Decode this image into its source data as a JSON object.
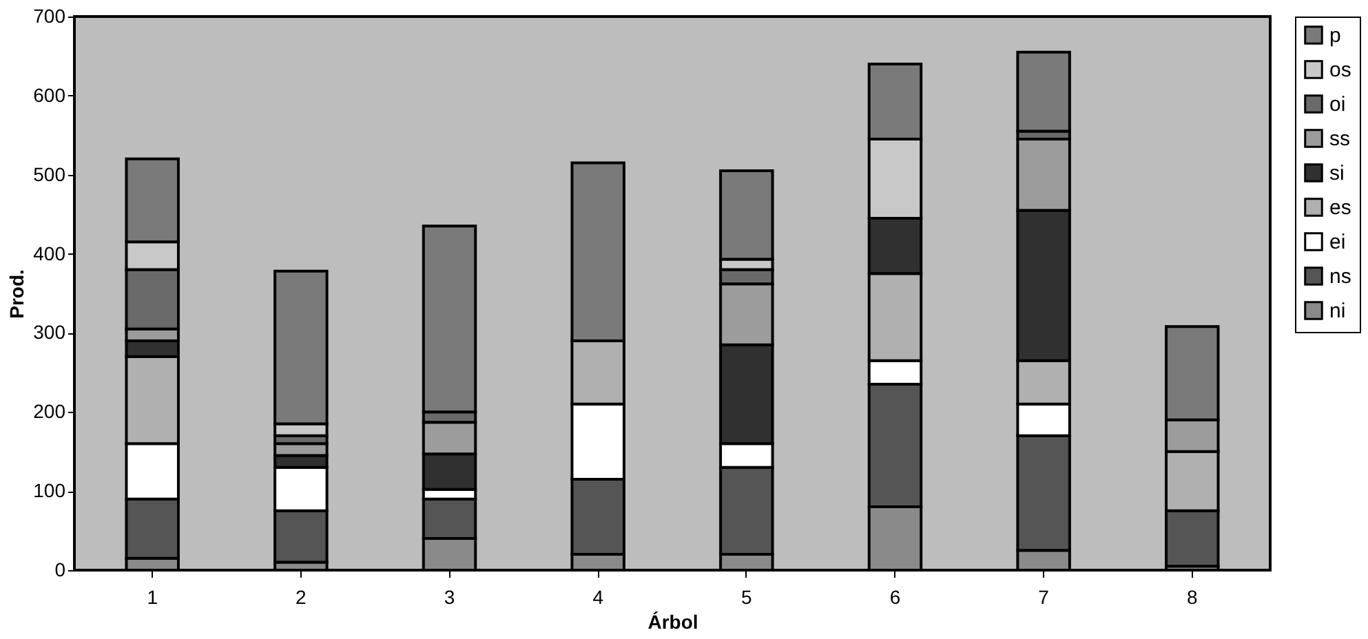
{
  "chart_data": {
    "type": "bar",
    "stacked": true,
    "xlabel": "Árbol",
    "ylabel": "Prod.",
    "categories": [
      "1",
      "2",
      "3",
      "4",
      "5",
      "6",
      "7",
      "8"
    ],
    "series": [
      {
        "name": "ni",
        "color": "#8a8a8a",
        "values": [
          15,
          10,
          40,
          20,
          20,
          80,
          25,
          5
        ]
      },
      {
        "name": "ns",
        "color": "#555555",
        "values": [
          75,
          65,
          50,
          95,
          110,
          155,
          145,
          70
        ]
      },
      {
        "name": "ei",
        "color": "#ffffff",
        "values": [
          70,
          55,
          12,
          95,
          30,
          30,
          40,
          null
        ]
      },
      {
        "name": "es",
        "color": "#b0b0b0",
        "values": [
          110,
          null,
          null,
          80,
          null,
          110,
          55,
          75
        ]
      },
      {
        "name": "si",
        "color": "#303030",
        "values": [
          20,
          15,
          45,
          null,
          125,
          70,
          190,
          null
        ]
      },
      {
        "name": "ss",
        "color": "#9c9c9c",
        "values": [
          15,
          15,
          40,
          null,
          77,
          null,
          90,
          40
        ]
      },
      {
        "name": "oi",
        "color": "#6a6a6a",
        "values": [
          75,
          10,
          13,
          null,
          18,
          null,
          10,
          null
        ]
      },
      {
        "name": "os",
        "color": "#c8c8c8",
        "values": [
          35,
          15,
          null,
          null,
          13,
          100,
          null,
          null
        ]
      },
      {
        "name": "p",
        "color": "#7a7a7a",
        "values": [
          105,
          193,
          235,
          225,
          112,
          95,
          100,
          118
        ]
      }
    ],
    "ylim": [
      0,
      700
    ],
    "yticks": [
      0,
      100,
      200,
      300,
      400,
      500,
      600,
      700
    ],
    "grid": false,
    "legend": "right"
  }
}
